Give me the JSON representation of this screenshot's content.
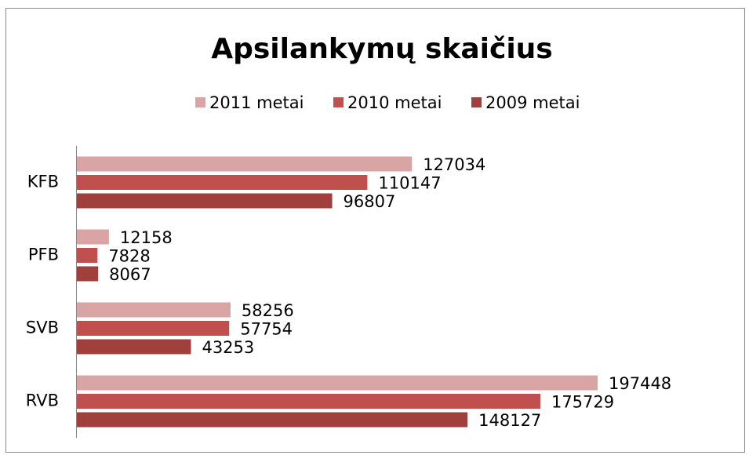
{
  "chart_data": {
    "type": "bar",
    "orientation": "horizontal",
    "title": "Apsilankymų skaičius",
    "categories": [
      "KFB",
      "PFB",
      "SVB",
      "RVB"
    ],
    "series": [
      {
        "name": "2011 metai",
        "color": "#d9a4a4",
        "values": [
          127034,
          12158,
          58256,
          197448
        ]
      },
      {
        "name": "2010 metai",
        "color": "#c0504d",
        "values": [
          110147,
          7828,
          57754,
          175729
        ]
      },
      {
        "name": "2009 metai",
        "color": "#a13f3d",
        "values": [
          96807,
          8067,
          43253,
          148127
        ]
      }
    ],
    "legend": "top"
  }
}
